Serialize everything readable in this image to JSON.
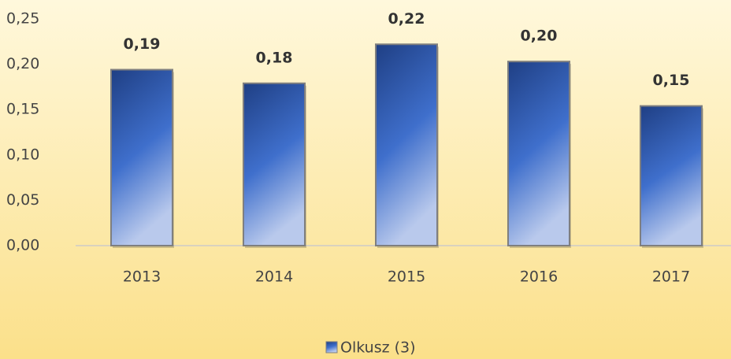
{
  "chart_data": {
    "type": "bar",
    "categories": [
      "2013",
      "2014",
      "2015",
      "2016",
      "2017"
    ],
    "series": [
      {
        "name": "Olkusz (3)",
        "color": "#3a62b8",
        "values": [
          0.194,
          0.179,
          0.222,
          0.203,
          0.154
        ],
        "value_labels": [
          "0,19",
          "0,18",
          "0,22",
          "0,20",
          "0,15"
        ]
      }
    ],
    "ylim": [
      0,
      0.25
    ],
    "yticks": [
      {
        "value": 0,
        "label": "0,00"
      },
      {
        "value": 0.05,
        "label": "0,05"
      },
      {
        "value": 0.1,
        "label": "0,10"
      },
      {
        "value": 0.15,
        "label": "0,15"
      },
      {
        "value": 0.2,
        "label": "0,20"
      },
      {
        "value": 0.25,
        "label": "0,25"
      }
    ],
    "grid": false,
    "legend": "bottom"
  }
}
